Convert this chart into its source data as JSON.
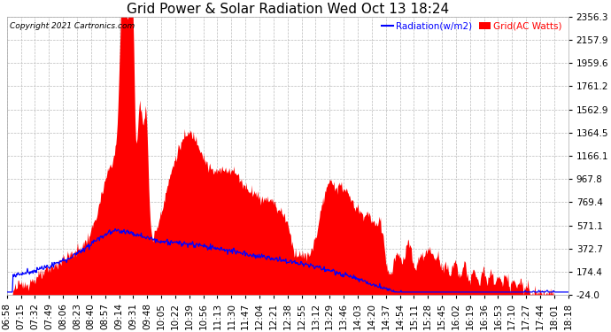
{
  "title": "Grid Power & Solar Radiation Wed Oct 13 18:24",
  "copyright": "Copyright 2021 Cartronics.com",
  "legend_radiation": "Radiation(w/m2)",
  "legend_grid": "Grid(AC Watts)",
  "ylabel_right_ticks": [
    2356.3,
    2157.9,
    1959.6,
    1761.2,
    1562.9,
    1364.5,
    1166.1,
    967.8,
    769.4,
    571.1,
    372.7,
    174.4,
    -24.0
  ],
  "ylim": [
    -24.0,
    2356.3
  ],
  "background_color": "#ffffff",
  "plot_bg_color": "#ffffff",
  "grid_color": "#bbbbbb",
  "red_color": "#ff0000",
  "blue_color": "#0000ff",
  "title_fontsize": 11,
  "tick_fontsize": 7.5,
  "x_labels": [
    "06:58",
    "07:15",
    "07:32",
    "07:49",
    "08:06",
    "08:23",
    "08:40",
    "08:57",
    "09:14",
    "09:31",
    "09:48",
    "10:05",
    "10:22",
    "10:39",
    "10:56",
    "11:13",
    "11:30",
    "11:47",
    "12:04",
    "12:21",
    "12:38",
    "12:55",
    "13:12",
    "13:29",
    "13:46",
    "14:03",
    "14:20",
    "14:37",
    "14:54",
    "15:11",
    "15:28",
    "15:45",
    "16:02",
    "16:19",
    "16:36",
    "16:53",
    "17:10",
    "17:27",
    "17:44",
    "18:01",
    "18:18"
  ]
}
